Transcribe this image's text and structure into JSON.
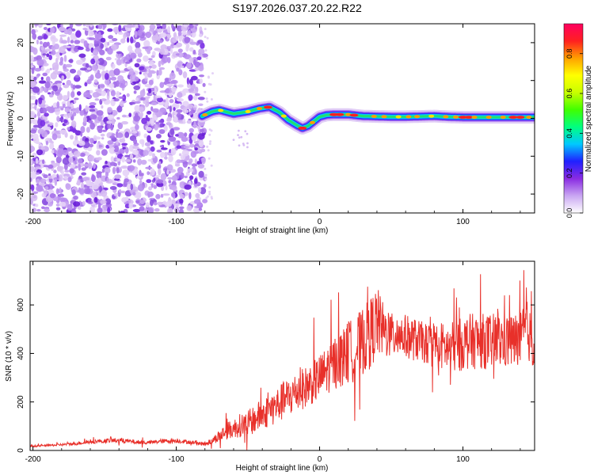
{
  "title": "S197.2026.037.20.22.R22",
  "chart_data": [
    {
      "type": "heatmap",
      "name": "spectrogram",
      "xlabel": "Height of straight line (km)",
      "ylabel": "Frequency (Hz)",
      "xlim": [
        -202,
        150
      ],
      "ylim": [
        -25,
        25
      ],
      "xticks": [
        -200,
        -100,
        0,
        100
      ],
      "xtick_labels": [
        "-200",
        "-100",
        "0",
        "100"
      ],
      "yticks": [
        -20,
        -10,
        0,
        10,
        20
      ],
      "ytick_labels": [
        "-20",
        "-10",
        "0",
        "10",
        "20"
      ],
      "noise_region": [
        -202,
        -80
      ],
      "ridge": {
        "x": [
          -82,
          -75,
          -70,
          -60,
          -50,
          -42,
          -35,
          -28,
          -22,
          -16,
          -12,
          -8,
          -4,
          0,
          5,
          10,
          20,
          30,
          40,
          50,
          60,
          70,
          80,
          90,
          100,
          110,
          120,
          130,
          140,
          150
        ],
        "y": [
          0.6,
          1.8,
          2.2,
          1.2,
          1.8,
          2.6,
          3.0,
          1.6,
          -0.4,
          -1.8,
          -2.6,
          -2.0,
          -0.8,
          0.4,
          0.9,
          1.0,
          1.0,
          0.6,
          0.5,
          0.4,
          0.4,
          0.5,
          0.6,
          0.4,
          0.3,
          0.3,
          0.3,
          0.3,
          0.3,
          0.3
        ]
      },
      "colorbar": {
        "label": "Normalized spectral amplitude",
        "range": [
          0.0,
          0.95
        ],
        "ticks": [
          0.0,
          0.2,
          0.4,
          0.6,
          0.8
        ],
        "tick_labels": [
          "0.0",
          "0.2",
          "0.4",
          "0.6",
          "0.8"
        ],
        "colors": [
          "#ffffff",
          "#c9a6f2",
          "#8a2be2",
          "#2020ff",
          "#00c8ff",
          "#00ff80",
          "#40ff00",
          "#c8ff00",
          "#ffff00",
          "#ffa000",
          "#ff2020",
          "#ff0060"
        ]
      }
    },
    {
      "type": "line",
      "name": "snr",
      "xlabel": "Height of straight line (km)",
      "ylabel": "SNR (10 * v/v)",
      "xlim": [
        -202,
        150
      ],
      "ylim": [
        0,
        780
      ],
      "xticks": [
        -200,
        -100,
        0,
        100
      ],
      "xtick_labels": [
        "-200",
        "-100",
        "0",
        "100"
      ],
      "yticks": [
        0,
        200,
        400,
        600
      ],
      "ytick_labels": [
        "0",
        "200",
        "400",
        "600"
      ],
      "series": [
        {
          "name": "SNR",
          "color": "#e8302a",
          "x": [
            -202,
            -190,
            -180,
            -170,
            -160,
            -150,
            -140,
            -130,
            -120,
            -110,
            -100,
            -90,
            -80,
            -75,
            -70,
            -65,
            -60,
            -55,
            -50,
            -45,
            -40,
            -35,
            -30,
            -25,
            -20,
            -15,
            -10,
            -5,
            0,
            5,
            10,
            15,
            20,
            25,
            30,
            35,
            40,
            45,
            50,
            55,
            60,
            65,
            70,
            75,
            80,
            85,
            90,
            95,
            100,
            105,
            110,
            115,
            120,
            125,
            130,
            135,
            140,
            145,
            150
          ],
          "y": [
            18,
            20,
            24,
            28,
            36,
            40,
            42,
            36,
            32,
            38,
            40,
            34,
            26,
            40,
            60,
            80,
            90,
            105,
            110,
            130,
            150,
            165,
            185,
            205,
            225,
            245,
            260,
            280,
            300,
            330,
            360,
            380,
            400,
            420,
            450,
            480,
            530,
            490,
            470,
            480,
            470,
            460,
            450,
            440,
            450,
            430,
            420,
            430,
            440,
            450,
            450,
            450,
            450,
            450,
            450,
            450,
            460,
            500,
            410
          ],
          "noise_amplitude": [
            4,
            4,
            5,
            6,
            8,
            9,
            10,
            9,
            8,
            9,
            9,
            8,
            8,
            14,
            25,
            35,
            40,
            50,
            55,
            60,
            65,
            70,
            75,
            80,
            85,
            85,
            85,
            90,
            95,
            100,
            110,
            120,
            130,
            135,
            140,
            145,
            150,
            110,
            95,
            95,
            90,
            90,
            85,
            85,
            90,
            100,
            100,
            110,
            110,
            115,
            115,
            115,
            115,
            115,
            115,
            115,
            115,
            120,
            100
          ]
        }
      ],
      "grid": false
    }
  ]
}
